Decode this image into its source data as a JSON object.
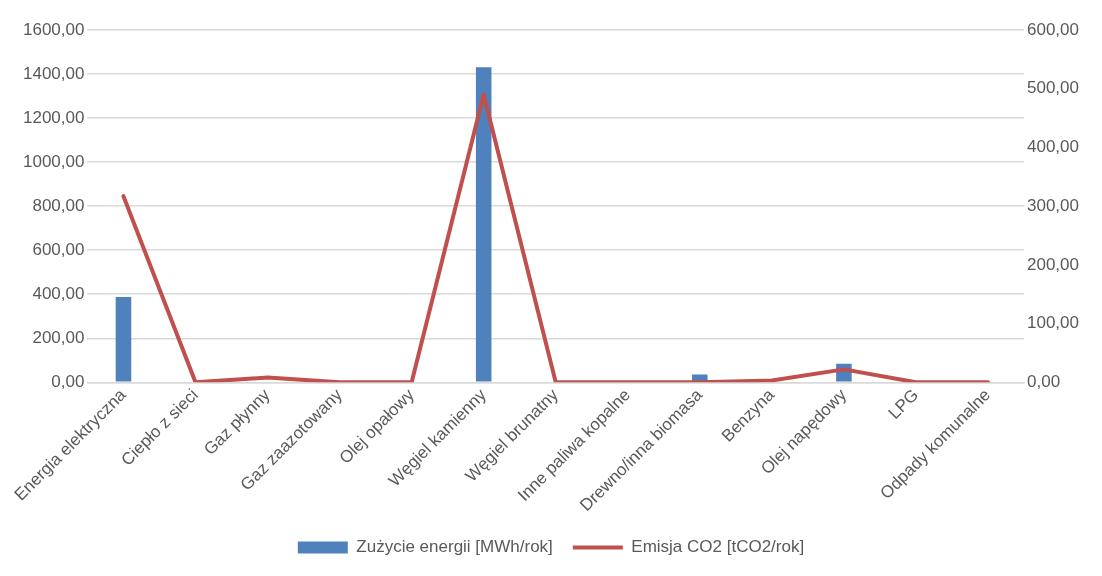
{
  "chart_data": {
    "type": "bar",
    "categories": [
      "Energia elektryczna",
      "Ciepło z sieci",
      "Gaz płynny",
      "Gaz zaazotowany",
      "Olej opałowy",
      "Węgiel kamienny",
      "Węgiel brunatny",
      "Inne paliwa kopalne",
      "Drewno/inna biomasa",
      "Benzyna",
      "Olej napędowy",
      "LPG",
      "Odpady komunalne"
    ],
    "series": [
      {
        "name": "Zużycie energii [MWh/rok]",
        "color": "#4f81bd",
        "values": [
          388,
          0,
          0,
          0,
          0,
          1431,
          0,
          0,
          35,
          null,
          84,
          0,
          0
        ]
      },
      {
        "name": "Emisja CO2 [tCO2/rok]",
        "type": "line",
        "axis": "y2",
        "color": "#c0504d",
        "values": [
          317,
          0,
          8,
          0,
          0,
          490,
          0,
          0,
          0,
          3,
          22,
          0,
          0
        ]
      }
    ],
    "ylim": [
      0,
      1600
    ],
    "yticks": [
      {
        "value": 0,
        "label": "0,00"
      },
      {
        "value": 200,
        "label": "200,00"
      },
      {
        "value": 400,
        "label": "400,00"
      },
      {
        "value": 600,
        "label": "600,00"
      },
      {
        "value": 800,
        "label": "800,00"
      },
      {
        "value": 1000,
        "label": "1000,00"
      },
      {
        "value": 1200,
        "label": "1200,00"
      },
      {
        "value": 1400,
        "label": "1400,00"
      },
      {
        "value": 1600,
        "label": "1600,00"
      }
    ],
    "y2lim": [
      0,
      600
    ],
    "y2ticks": [
      {
        "value": 0,
        "label": "0,00"
      },
      {
        "value": 100,
        "label": "100,00"
      },
      {
        "value": 200,
        "label": "200,00"
      },
      {
        "value": 300,
        "label": "300,00"
      },
      {
        "value": 400,
        "label": "400,00"
      },
      {
        "value": 500,
        "label": "500,00"
      },
      {
        "value": 600,
        "label": "600,00"
      }
    ],
    "grid": "y",
    "legend": "bottom",
    "marker": "none",
    "line_style": "solid"
  }
}
